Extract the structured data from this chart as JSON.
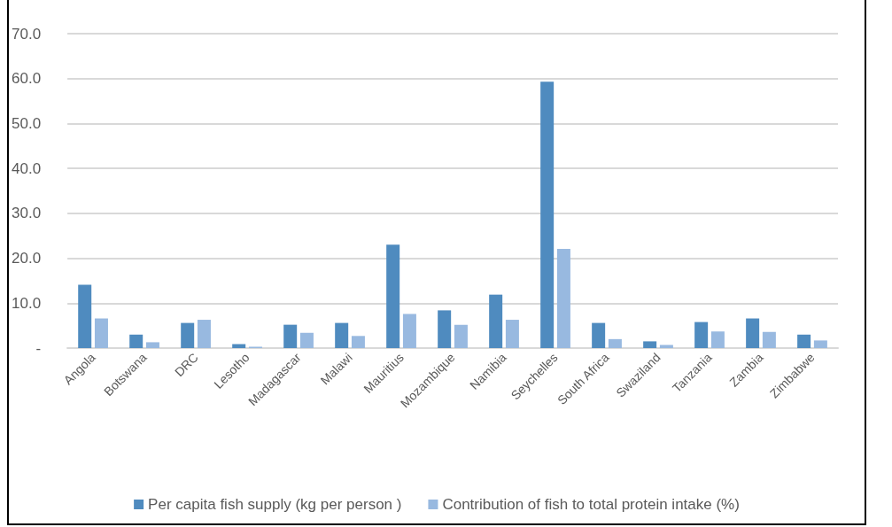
{
  "chart_data": {
    "type": "bar",
    "categories": [
      "Angola",
      "Botswana",
      "DRC",
      "Lesotho",
      "Madagascar",
      "Malawi",
      "Mauritius",
      "Mozambique",
      "Namibia",
      "Seychelles",
      "South Africa",
      "Swaziland",
      "Tanzania",
      "Zambia",
      "Zimbabwe"
    ],
    "series": [
      {
        "name": "Per capita fish supply (kg per person )",
        "color": "#4f8bbf",
        "values": [
          14.1,
          3.0,
          5.6,
          0.9,
          5.2,
          5.6,
          23.0,
          8.4,
          11.9,
          59.3,
          5.6,
          1.5,
          5.8,
          6.6,
          3.0
        ]
      },
      {
        "name": "Contribution of fish to total protein intake (%)",
        "color": "#98b9e0",
        "values": [
          6.6,
          1.3,
          6.3,
          0.3,
          3.4,
          2.7,
          7.6,
          5.2,
          6.3,
          22.1,
          2.0,
          0.7,
          3.7,
          3.6,
          1.7
        ]
      }
    ],
    "ylim": [
      0,
      70
    ],
    "yticks": [
      {
        "value": 0,
        "label": "-"
      },
      {
        "value": 10,
        "label": "10.0"
      },
      {
        "value": 20,
        "label": "20.0"
      },
      {
        "value": 30,
        "label": "30.0"
      },
      {
        "value": 40,
        "label": "40.0"
      },
      {
        "value": 50,
        "label": "50.0"
      },
      {
        "value": 60,
        "label": "60.0"
      },
      {
        "value": 70,
        "label": "70.0"
      }
    ],
    "grid": "y",
    "legend": "bottom"
  }
}
